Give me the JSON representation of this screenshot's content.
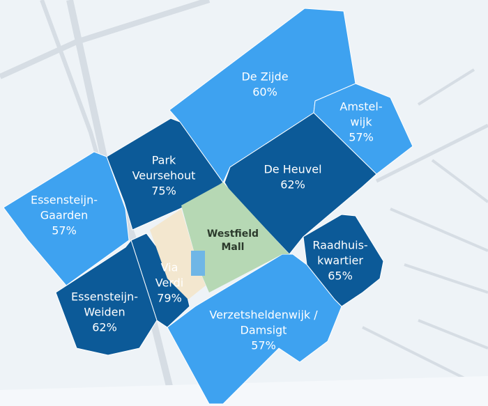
{
  "map": {
    "landmark": {
      "lines": [
        "Westfield",
        "Mall"
      ]
    },
    "districts": [
      {
        "lines": [
          "De Zijde"
        ],
        "share": "60%"
      },
      {
        "lines": [
          "Amstel-",
          "wijk"
        ],
        "share": "57%"
      },
      {
        "lines": [
          "De Heuvel"
        ],
        "share": "62%"
      },
      {
        "lines": [
          "Park",
          "Veursehout"
        ],
        "share": "75%"
      },
      {
        "lines": [
          "Essensteijn-",
          "Gaarden"
        ],
        "share": "57%"
      },
      {
        "lines": [
          "Via",
          "Verdi"
        ],
        "share": "79%"
      },
      {
        "lines": [
          "Essensteijn-",
          "Weiden"
        ],
        "share": "62%"
      },
      {
        "lines": [
          "Raadhuis-",
          "kwartier"
        ],
        "share": "65%"
      },
      {
        "lines": [
          "Verzetsheldenwijk /",
          "Damsigt"
        ],
        "share": "57%"
      }
    ]
  }
}
